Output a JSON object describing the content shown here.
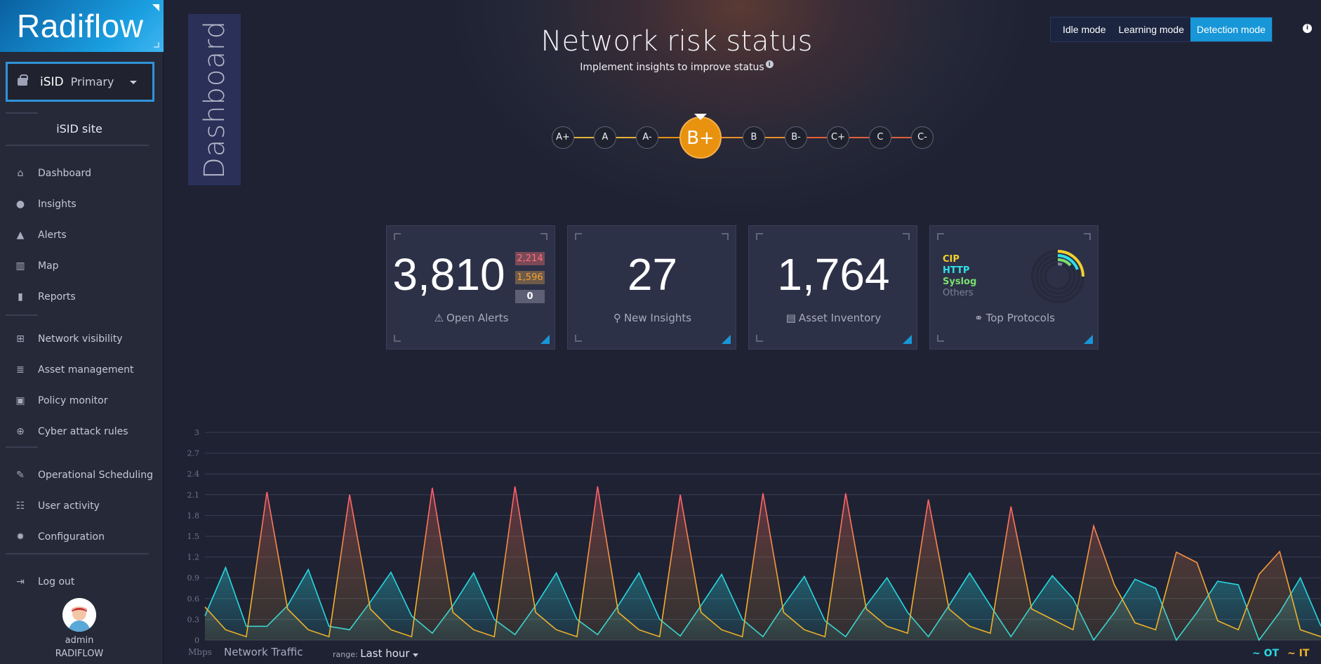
{
  "sidebar": {
    "logo": "Radiflow",
    "site_selector": {
      "product": "iSID",
      "value": "Primary"
    },
    "site_title": "iSID site",
    "groups": [
      [
        {
          "label": "Dashboard",
          "icon": "home-icon"
        },
        {
          "label": "Insights",
          "icon": "lightbulb-icon"
        },
        {
          "label": "Alerts",
          "icon": "warning-icon"
        },
        {
          "label": "Map",
          "icon": "map-icon"
        },
        {
          "label": "Reports",
          "icon": "bar-chart-icon"
        }
      ],
      [
        {
          "label": "Network visibility",
          "icon": "network-icon"
        },
        {
          "label": "Asset management",
          "icon": "database-icon"
        },
        {
          "label": "Policy monitor",
          "icon": "policy-icon"
        },
        {
          "label": "Cyber attack rules",
          "icon": "target-icon"
        }
      ],
      [
        {
          "label": "Operational Scheduling",
          "icon": "wrench-icon"
        },
        {
          "label": "User activity",
          "icon": "users-icon"
        },
        {
          "label": "Configuration",
          "icon": "gear-icon"
        }
      ],
      [
        {
          "label": "Log out",
          "icon": "logout-icon"
        }
      ]
    ],
    "user": {
      "name": "admin",
      "org": "RADIFLOW"
    }
  },
  "main": {
    "vertical_tab": "Dashboard",
    "title": "Network risk status",
    "subtitle": "Implement insights to improve status",
    "modes": [
      {
        "label": "Idle mode",
        "active": false
      },
      {
        "label": "Learning mode",
        "active": false
      },
      {
        "label": "Detection mode",
        "active": true
      }
    ],
    "grades": [
      "A+",
      "A",
      "A-",
      "B+",
      "B",
      "B-",
      "C+",
      "C",
      "C-"
    ],
    "current_grade": "B+",
    "grade_colors": {
      "A+": "#e2b23a",
      "A": "#e2b23a",
      "A-": "#e2b23a",
      "B+": "#e8920f",
      "B": "#e8902a",
      "B-": "#e8902a",
      "C+": "#e0603a",
      "C": "#e0603a",
      "C-": "#e0603a"
    },
    "cards": {
      "alerts": {
        "value": "3,810",
        "caption": "Open Alerts",
        "severity": [
          {
            "value": "2,214",
            "color": "#ff6f7f",
            "bg": "#7a4a57"
          },
          {
            "value": "1,596",
            "color": "#f2a134",
            "bg": "#6e5a4b"
          },
          {
            "value": "0",
            "color": "#ffffff",
            "bg": "#5d6075"
          }
        ]
      },
      "insights": {
        "value": "27",
        "caption": "New Insights"
      },
      "assets": {
        "value": "1,764",
        "caption": "Asset Inventory"
      },
      "protocols": {
        "caption": "Top Protocols",
        "items": [
          {
            "label": "CIP",
            "color": "#f2d12e"
          },
          {
            "label": "HTTP",
            "color": "#2fe0e8"
          },
          {
            "label": "Syslog",
            "color": "#79e06e"
          },
          {
            "label": "Others",
            "color": "#7e8299"
          }
        ]
      }
    }
  },
  "chart_data": {
    "type": "area",
    "unit": "Mbps",
    "title": "Network Traffic",
    "range_label": "range:",
    "range_value": "Last hour",
    "ylim": [
      0,
      3
    ],
    "yticks": [
      "0",
      "0.3",
      "0.6",
      "0.9",
      "1.2",
      "1.5",
      "1.8",
      "2.1",
      "2.4",
      "2.7",
      "3"
    ],
    "series": [
      {
        "name": "~ OT",
        "color": "#27d8e0",
        "values": [
          0.35,
          1.05,
          0.2,
          0.2,
          0.5,
          1.02,
          0.2,
          0.15,
          0.55,
          0.98,
          0.35,
          0.1,
          0.5,
          0.97,
          0.3,
          0.08,
          0.5,
          0.97,
          0.3,
          0.08,
          0.5,
          0.97,
          0.3,
          0.06,
          0.5,
          0.95,
          0.3,
          0.05,
          0.5,
          0.92,
          0.28,
          0.05,
          0.5,
          0.9,
          0.4,
          0.05,
          0.5,
          0.97,
          0.5,
          0.05,
          0.5,
          0.93,
          0.6,
          0.0,
          0.4,
          0.88,
          0.75,
          0.0,
          0.4,
          0.85,
          0.8,
          0.0,
          0.4,
          0.9,
          0.2
        ]
      },
      {
        "name": "~ IT",
        "color": "#f0b22a",
        "values": [
          0.48,
          0.15,
          0.05,
          2.14,
          0.45,
          0.15,
          0.05,
          2.1,
          0.45,
          0.15,
          0.05,
          2.2,
          0.4,
          0.15,
          0.05,
          2.22,
          0.4,
          0.15,
          0.05,
          2.22,
          0.4,
          0.15,
          0.05,
          2.1,
          0.4,
          0.15,
          0.05,
          2.12,
          0.4,
          0.15,
          0.05,
          2.12,
          0.45,
          0.2,
          0.1,
          2.03,
          0.45,
          0.2,
          0.1,
          1.93,
          0.45,
          0.3,
          0.15,
          1.65,
          0.8,
          0.25,
          0.15,
          1.27,
          1.12,
          0.28,
          0.15,
          0.95,
          1.28,
          0.15,
          0.05
        ]
      }
    ]
  }
}
